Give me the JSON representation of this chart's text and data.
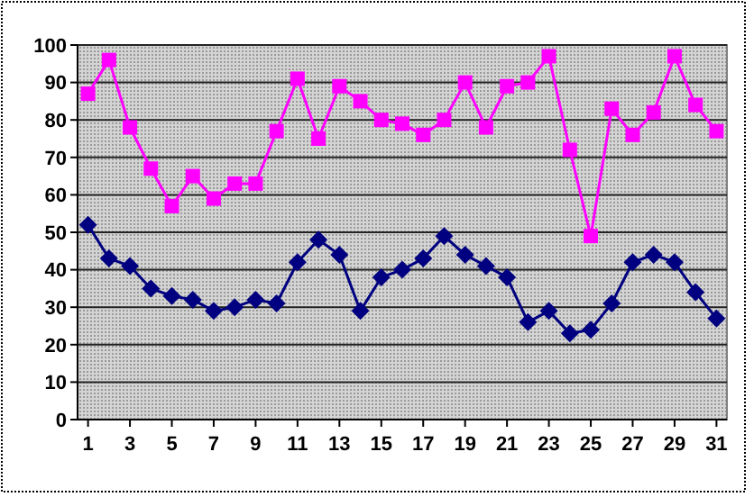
{
  "chart_data": {
    "type": "line",
    "x": [
      1,
      2,
      3,
      4,
      5,
      6,
      7,
      8,
      9,
      10,
      11,
      12,
      13,
      14,
      15,
      16,
      17,
      18,
      19,
      20,
      21,
      22,
      23,
      24,
      25,
      26,
      27,
      28,
      29,
      30,
      31
    ],
    "series": [
      {
        "color": "#ff00ff",
        "marker": "square",
        "values": [
          87,
          96,
          78,
          67,
          57,
          65,
          59,
          63,
          63,
          77,
          91,
          75,
          89,
          85,
          80,
          79,
          76,
          80,
          90,
          78,
          89,
          90,
          97,
          72,
          49,
          83,
          76,
          82,
          97,
          84,
          77
        ]
      },
      {
        "color": "#000080",
        "marker": "diamond",
        "values": [
          52,
          43,
          41,
          35,
          33,
          32,
          29,
          30,
          32,
          31,
          42,
          48,
          44,
          29,
          38,
          40,
          43,
          49,
          44,
          41,
          38,
          26,
          29,
          23,
          24,
          31,
          42,
          44,
          42,
          34,
          27
        ]
      }
    ],
    "xlim": [
      0.5,
      31.5
    ],
    "xticks": [
      1,
      3,
      5,
      7,
      9,
      11,
      13,
      15,
      17,
      19,
      21,
      23,
      25,
      27,
      29,
      31
    ],
    "ylim": [
      0,
      100
    ],
    "yticks": [
      0,
      10,
      20,
      30,
      40,
      50,
      60,
      70,
      80,
      90,
      100
    ],
    "grid": "y"
  }
}
